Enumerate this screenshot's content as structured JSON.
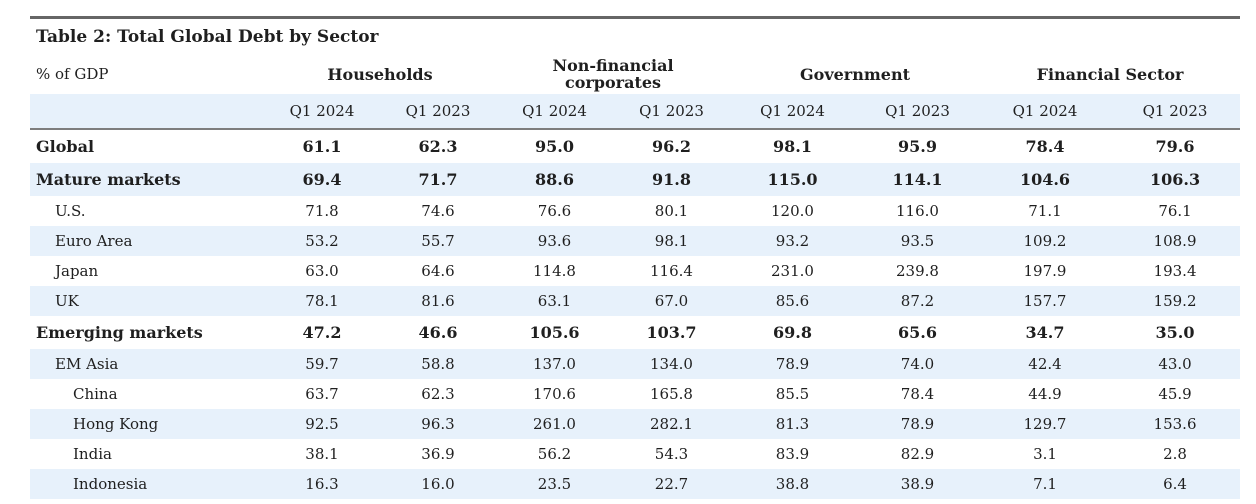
{
  "table": {
    "title": "Table 2:  Total Global Debt by Sector",
    "unit_label": "% of GDP",
    "groups": [
      "Households",
      "Non-financial corporates",
      "Government",
      "Financial Sector"
    ],
    "periods": [
      "Q1 2024",
      "Q1 2023",
      "Q1 2024",
      "Q1 2023",
      "Q1 2024",
      "Q1 2023",
      "Q1 2024",
      "Q1 2023"
    ],
    "rows": [
      {
        "label": "Global",
        "level": 0,
        "bold": true,
        "shaded": false,
        "values": [
          "61.1",
          "62.3",
          "95.0",
          "96.2",
          "98.1",
          "95.9",
          "78.4",
          "79.6"
        ]
      },
      {
        "label": "Mature markets",
        "level": 0,
        "bold": true,
        "shaded": true,
        "values": [
          "69.4",
          "71.7",
          "88.6",
          "91.8",
          "115.0",
          "114.1",
          "104.6",
          "106.3"
        ]
      },
      {
        "label": "U.S.",
        "level": 1,
        "bold": false,
        "shaded": false,
        "values": [
          "71.8",
          "74.6",
          "76.6",
          "80.1",
          "120.0",
          "116.0",
          "71.1",
          "76.1"
        ]
      },
      {
        "label": "Euro Area",
        "level": 1,
        "bold": false,
        "shaded": true,
        "values": [
          "53.2",
          "55.7",
          "93.6",
          "98.1",
          "93.2",
          "93.5",
          "109.2",
          "108.9"
        ]
      },
      {
        "label": "Japan",
        "level": 1,
        "bold": false,
        "shaded": false,
        "values": [
          "63.0",
          "64.6",
          "114.8",
          "116.4",
          "231.0",
          "239.8",
          "197.9",
          "193.4"
        ]
      },
      {
        "label": "UK",
        "level": 1,
        "bold": false,
        "shaded": true,
        "values": [
          "78.1",
          "81.6",
          "63.1",
          "67.0",
          "85.6",
          "87.2",
          "157.7",
          "159.2"
        ]
      },
      {
        "label": "Emerging markets",
        "level": 0,
        "bold": true,
        "shaded": false,
        "values": [
          "47.2",
          "46.6",
          "105.6",
          "103.7",
          "69.8",
          "65.6",
          "34.7",
          "35.0"
        ]
      },
      {
        "label": "EM Asia",
        "level": 1,
        "bold": false,
        "shaded": true,
        "values": [
          "59.7",
          "58.8",
          "137.0",
          "134.0",
          "78.9",
          "74.0",
          "42.4",
          "43.0"
        ]
      },
      {
        "label": "China",
        "level": 2,
        "bold": false,
        "shaded": false,
        "values": [
          "63.7",
          "62.3",
          "170.6",
          "165.8",
          "85.5",
          "78.4",
          "44.9",
          "45.9"
        ]
      },
      {
        "label": "Hong Kong",
        "level": 2,
        "bold": false,
        "shaded": true,
        "values": [
          "92.5",
          "96.3",
          "261.0",
          "282.1",
          "81.3",
          "78.9",
          "129.7",
          "153.6"
        ]
      },
      {
        "label": "India",
        "level": 2,
        "bold": false,
        "shaded": false,
        "values": [
          "38.1",
          "36.9",
          "56.2",
          "54.3",
          "83.9",
          "82.9",
          "3.1",
          "2.8"
        ]
      },
      {
        "label": "Indonesia",
        "level": 2,
        "bold": false,
        "shaded": true,
        "values": [
          "16.3",
          "16.0",
          "23.5",
          "22.7",
          "38.8",
          "38.9",
          "7.1",
          "6.4"
        ]
      }
    ]
  },
  "colors": {
    "band": "#e7f1fb",
    "rule": "#666666"
  }
}
